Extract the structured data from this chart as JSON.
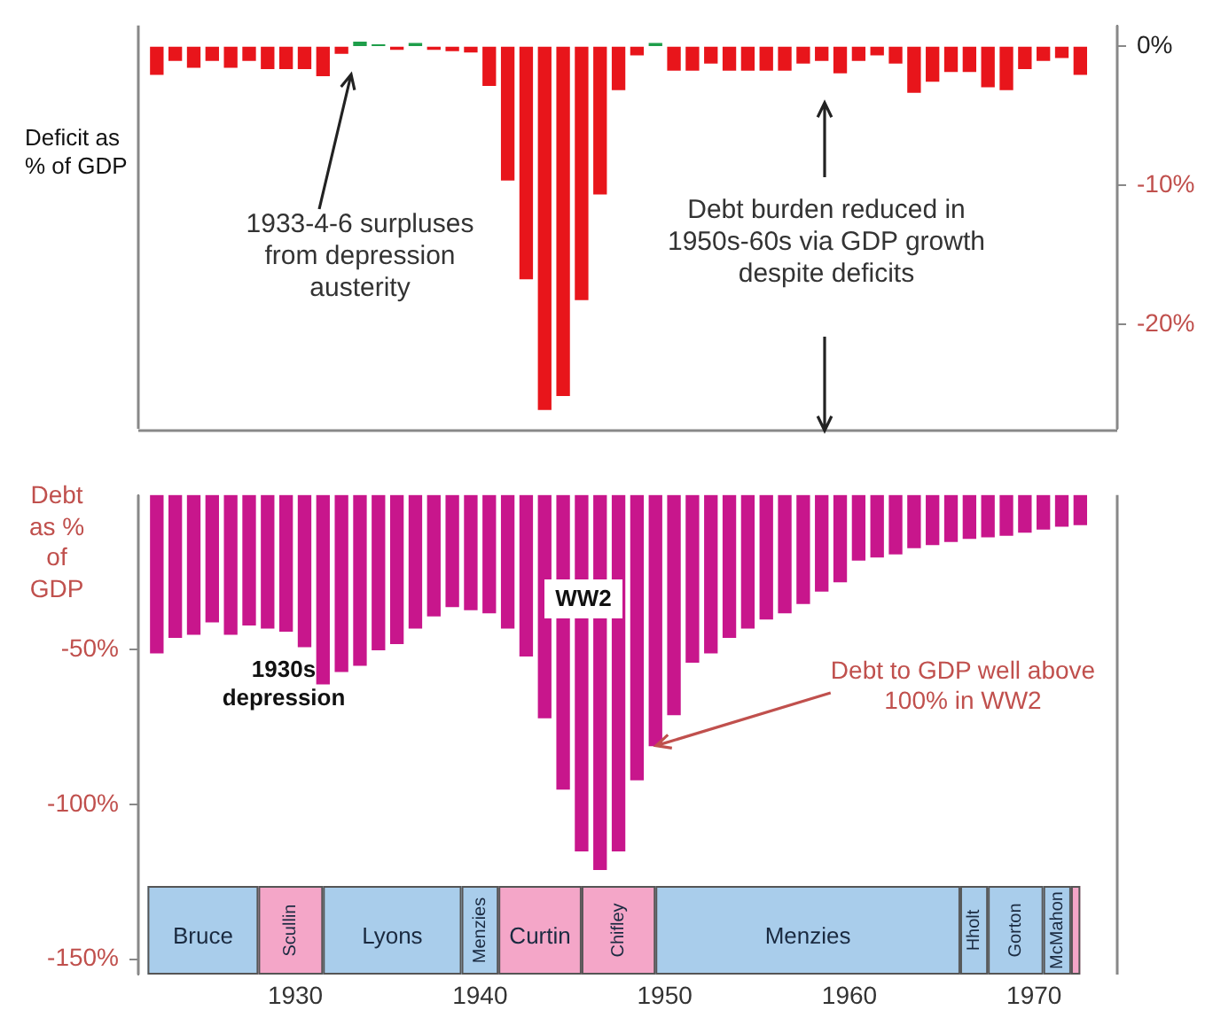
{
  "chart_data": [
    {
      "type": "bar",
      "ylabel": "Deficit as % of GDP",
      "tick_labels": "y",
      "x": [
        1922.5,
        1923.5,
        1924.5,
        1925.5,
        1926.5,
        1927.5,
        1928.5,
        1929.5,
        1930.5,
        1931.5,
        1932.5,
        1933.5,
        1934.5,
        1935.5,
        1936.5,
        1937.5,
        1938.5,
        1939.5,
        1940.5,
        1941.5,
        1942.5,
        1943.5,
        1944.5,
        1945.5,
        1946.5,
        1947.5,
        1948.5,
        1949.5,
        1950.5,
        1951.5,
        1952.5,
        1953.5,
        1954.5,
        1955.5,
        1956.5,
        1957.5,
        1958.5,
        1959.5,
        1960.5,
        1961.5,
        1962.5,
        1963.5,
        1964.5,
        1965.5,
        1966.5,
        1967.5,
        1968.5,
        1969.5,
        1970.5,
        1971.5,
        1972.5
      ],
      "values": [
        -2.0,
        -1.0,
        -1.5,
        -1.0,
        -1.5,
        -1.0,
        -1.6,
        -1.6,
        -1.6,
        -2.1,
        -0.5,
        0.3,
        0.1,
        -0.2,
        0.2,
        -0.2,
        -0.3,
        -0.4,
        -2.8,
        -9.6,
        -16.7,
        -26.1,
        -25.1,
        -18.2,
        -10.6,
        -3.1,
        -0.6,
        0.2,
        -1.7,
        -1.7,
        -1.2,
        -1.7,
        -1.7,
        -1.7,
        -1.7,
        -1.2,
        -1.0,
        -1.9,
        -1.0,
        -0.6,
        -1.2,
        -3.3,
        -2.5,
        -1.8,
        -1.8,
        -2.9,
        -3.1,
        -1.6,
        -1.0,
        -0.8,
        -2.0
      ],
      "colors": [
        "#e8151b",
        "#e8151b",
        "#e8151b",
        "#e8151b",
        "#e8151b",
        "#e8151b",
        "#e8151b",
        "#e8151b",
        "#e8151b",
        "#e8151b",
        "#e8151b",
        "#1e9e4a",
        "#1e9e4a",
        "#e8151b",
        "#1e9e4a",
        "#e8151b",
        "#e8151b",
        "#e8151b",
        "#e8151b",
        "#e8151b",
        "#e8151b",
        "#e8151b",
        "#e8151b",
        "#e8151b",
        "#e8151b",
        "#e8151b",
        "#e8151b",
        "#1e9e4a",
        "#e8151b",
        "#e8151b",
        "#e8151b",
        "#e8151b",
        "#e8151b",
        "#e8151b",
        "#e8151b",
        "#e8151b",
        "#e8151b",
        "#e8151b",
        "#e8151b",
        "#e8151b",
        "#e8151b",
        "#e8151b",
        "#e8151b",
        "#e8151b",
        "#e8151b",
        "#e8151b",
        "#e8151b",
        "#e8151b",
        "#e8151b",
        "#e8151b",
        "#e8151b"
      ],
      "xlim": [
        1921.5,
        1974.5
      ],
      "ylim": [
        -27.5,
        1.5
      ],
      "yticks": [
        {
          "value": 0,
          "label": "0%"
        },
        {
          "value": -10,
          "label": "-10%"
        },
        {
          "value": -20,
          "label": "-20%"
        }
      ],
      "annotations": [
        "1933-4-6 surpluses from depression austerity",
        "Debt burden reduced in 1950s-60s via GDP growth despite deficits"
      ]
    },
    {
      "type": "bar",
      "ylabel": "Debt as % of GDP",
      "x": [
        1922.5,
        1923.5,
        1924.5,
        1925.5,
        1926.5,
        1927.5,
        1928.5,
        1929.5,
        1930.5,
        1931.5,
        1932.5,
        1933.5,
        1934.5,
        1935.5,
        1936.5,
        1937.5,
        1938.5,
        1939.5,
        1940.5,
        1941.5,
        1942.5,
        1943.5,
        1944.5,
        1945.5,
        1946.5,
        1947.5,
        1948.5,
        1949.5,
        1950.5,
        1951.5,
        1952.5,
        1953.5,
        1954.5,
        1955.5,
        1956.5,
        1957.5,
        1958.5,
        1959.5,
        1960.5,
        1961.5,
        1962.5,
        1963.5,
        1964.5,
        1965.5,
        1966.5,
        1967.5,
        1968.5,
        1969.5,
        1970.5,
        1971.5,
        1972.5
      ],
      "values": [
        -51,
        -46,
        -45,
        -41,
        -45,
        -42,
        -43,
        -44,
        -49,
        -61,
        -57,
        -55,
        -50,
        -48,
        -43,
        -39,
        -36,
        -37,
        -38,
        -43,
        -52,
        -72,
        -95,
        -115,
        -121,
        -115,
        -92,
        -81,
        -71,
        -54,
        -51,
        -46,
        -43,
        -40,
        -38,
        -35,
        -31,
        -28,
        -21,
        -20,
        -19,
        -17,
        -16,
        -15,
        -14,
        -13.5,
        -13,
        -12,
        -11,
        -10,
        -9.5
      ],
      "color": "#c8168c",
      "xlim": [
        1921.5,
        1974.5
      ],
      "xticks": [
        1930,
        1940,
        1950,
        1960,
        1970
      ],
      "ylim": [
        -155,
        0
      ],
      "yticks": [
        {
          "value": -50,
          "label": "-50%"
        },
        {
          "value": -100,
          "label": "-100%"
        },
        {
          "value": -150,
          "label": "-150%"
        }
      ],
      "annotations": [
        "1930s depression",
        "WW2",
        {
          "text": "Debt to GDP well above 100%  in WW2",
          "x": 1949.5,
          "y": -81
        }
      ],
      "bands": [
        {
          "axis": "x",
          "from": 1922,
          "to": 1928,
          "label": "Bruce",
          "color": "#a9cdeb"
        },
        {
          "axis": "x",
          "from": 1928,
          "to": 1931.5,
          "label": "Scullin",
          "color": "#f4a6c8"
        },
        {
          "axis": "x",
          "from": 1931.5,
          "to": 1939,
          "label": "Lyons",
          "color": "#a9cdeb"
        },
        {
          "axis": "x",
          "from": 1939,
          "to": 1941,
          "label": "Menzies",
          "color": "#a9cdeb"
        },
        {
          "axis": "x",
          "from": 1941,
          "to": 1945.5,
          "label": "Curtin",
          "color": "#f4a6c8"
        },
        {
          "axis": "x",
          "from": 1945.5,
          "to": 1949.5,
          "label": "Chifley",
          "color": "#f4a6c8"
        },
        {
          "axis": "x",
          "from": 1949.5,
          "to": 1966,
          "label": "Menzies",
          "color": "#a9cdeb"
        },
        {
          "axis": "x",
          "from": 1966,
          "to": 1967.5,
          "label": "Hholt",
          "color": "#a9cdeb"
        },
        {
          "axis": "x",
          "from": 1967.5,
          "to": 1970.5,
          "label": "Gorton",
          "color": "#a9cdeb"
        },
        {
          "axis": "x",
          "from": 1970.5,
          "to": 1972,
          "label": "McMahon",
          "color": "#a9cdeb"
        },
        {
          "axis": "x",
          "from": 1972,
          "to": 1972.5,
          "label": null,
          "color": "#f4a6c8"
        }
      ]
    }
  ]
}
